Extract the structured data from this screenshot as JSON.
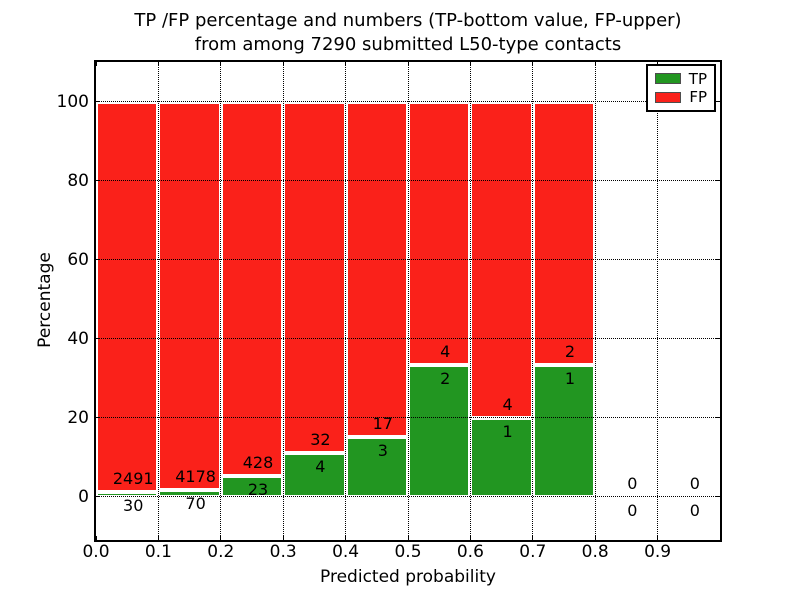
{
  "title": {
    "line1": "TP /FP percentage and numbers (TP-bottom value, FP-upper)",
    "line2": "from among 7290 submitted L50-type contacts"
  },
  "axes": {
    "xlabel": "Predicted probability",
    "ylabel": "Percentage",
    "x_tick_labels": [
      "0.0",
      "0.1",
      "0.2",
      "0.3",
      "0.4",
      "0.5",
      "0.6",
      "0.7",
      "0.8",
      "0.9"
    ],
    "y_tick_labels": [
      "0",
      "20",
      "40",
      "60",
      "80",
      "100"
    ]
  },
  "legend": {
    "items": [
      {
        "label": "TP",
        "color": "#229621"
      },
      {
        "label": "FP",
        "color": "#FA211A"
      }
    ]
  },
  "colors": {
    "tp_green": "#229621",
    "fp_red": "#FA211A",
    "grid": "#000000",
    "text": "#000000",
    "background": "#ffffff"
  },
  "chart_data": {
    "type": "bar",
    "stacked": true,
    "orientation": "vertical",
    "title": "TP /FP percentage and numbers (TP-bottom value, FP-upper) from among 7290 submitted L50-type contacts",
    "xlabel": "Predicted probability",
    "ylabel": "Percentage",
    "xlim": [
      0,
      1.0
    ],
    "ylim": [
      -11,
      110
    ],
    "grid": "dotted",
    "legend_position": "upper-right",
    "total_submitted": 7290,
    "series_names": [
      "TP",
      "FP"
    ],
    "bins": [
      {
        "x_range": [
          0.0,
          0.1
        ],
        "tp_count": 30,
        "fp_count": 2491,
        "tp_pct": 1.19,
        "fp_pct": 98.81
      },
      {
        "x_range": [
          0.1,
          0.2
        ],
        "tp_count": 70,
        "fp_count": 4178,
        "tp_pct": 1.65,
        "fp_pct": 98.35
      },
      {
        "x_range": [
          0.2,
          0.3
        ],
        "tp_count": 23,
        "fp_count": 428,
        "tp_pct": 5.1,
        "fp_pct": 94.9
      },
      {
        "x_range": [
          0.3,
          0.4
        ],
        "tp_count": 4,
        "fp_count": 32,
        "tp_pct": 11.11,
        "fp_pct": 88.89
      },
      {
        "x_range": [
          0.4,
          0.5
        ],
        "tp_count": 3,
        "fp_count": 17,
        "tp_pct": 15.0,
        "fp_pct": 85.0
      },
      {
        "x_range": [
          0.5,
          0.6
        ],
        "tp_count": 2,
        "fp_count": 4,
        "tp_pct": 33.33,
        "fp_pct": 66.67
      },
      {
        "x_range": [
          0.6,
          0.7
        ],
        "tp_count": 1,
        "fp_count": 4,
        "tp_pct": 20.0,
        "fp_pct": 80.0
      },
      {
        "x_range": [
          0.7,
          0.8
        ],
        "tp_count": 1,
        "fp_count": 2,
        "tp_pct": 33.33,
        "fp_pct": 66.67
      },
      {
        "x_range": [
          0.8,
          0.9
        ],
        "tp_count": 0,
        "fp_count": 0,
        "tp_pct": 0,
        "fp_pct": 0
      },
      {
        "x_range": [
          0.9,
          1.0
        ],
        "tp_count": 0,
        "fp_count": 0,
        "tp_pct": 0,
        "fp_pct": 0
      }
    ]
  }
}
